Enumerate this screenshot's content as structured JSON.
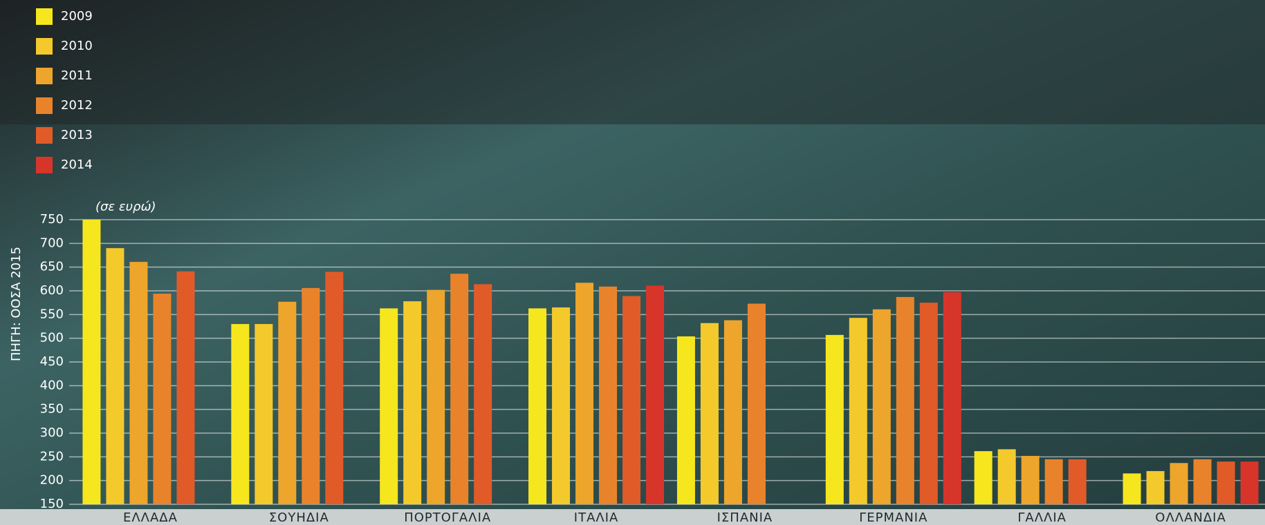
{
  "chart_data": {
    "type": "bar",
    "y_unit_label": "(σε ευρώ)",
    "source": "ΠΗΓΗ: ΟΟΣΑ 2015",
    "categories": [
      "ΕΛΛΑΔΑ",
      "ΣΟΥΗΔΙΑ",
      "ΠΟΡΤΟΓΑΛΙΑ",
      "ΙΤΑΛΙΑ",
      "ΙΣΠΑΝΙΑ",
      "ΓΕΡΜΑΝΙΑ",
      "ΓΑΛΛΙΑ",
      "ΟΛΛΑΝΔΙΑ"
    ],
    "series": [
      {
        "name": "2009",
        "color": "#f6e61e",
        "values": [
          750,
          530,
          563,
          563,
          504,
          507,
          262,
          215
        ]
      },
      {
        "name": "2010",
        "color": "#f4c92c",
        "values": [
          690,
          530,
          578,
          565,
          532,
          543,
          266,
          220
        ]
      },
      {
        "name": "2011",
        "color": "#eea52b",
        "values": [
          661,
          577,
          602,
          617,
          538,
          561,
          252,
          237
        ]
      },
      {
        "name": "2012",
        "color": "#e9832b",
        "values": [
          594,
          606,
          636,
          609,
          573,
          587,
          245,
          245
        ]
      },
      {
        "name": "2013",
        "color": "#e15b29",
        "values": [
          641,
          640,
          614,
          589,
          null,
          575,
          245,
          240
        ]
      },
      {
        "name": "2014",
        "color": "#d8352a",
        "values": [
          null,
          null,
          null,
          611,
          null,
          597,
          null,
          240
        ]
      }
    ],
    "ylim": [
      150,
      750
    ],
    "yticks": [
      150,
      200,
      250,
      300,
      350,
      400,
      450,
      500,
      550,
      600,
      650,
      700,
      750
    ],
    "grid": true
  }
}
